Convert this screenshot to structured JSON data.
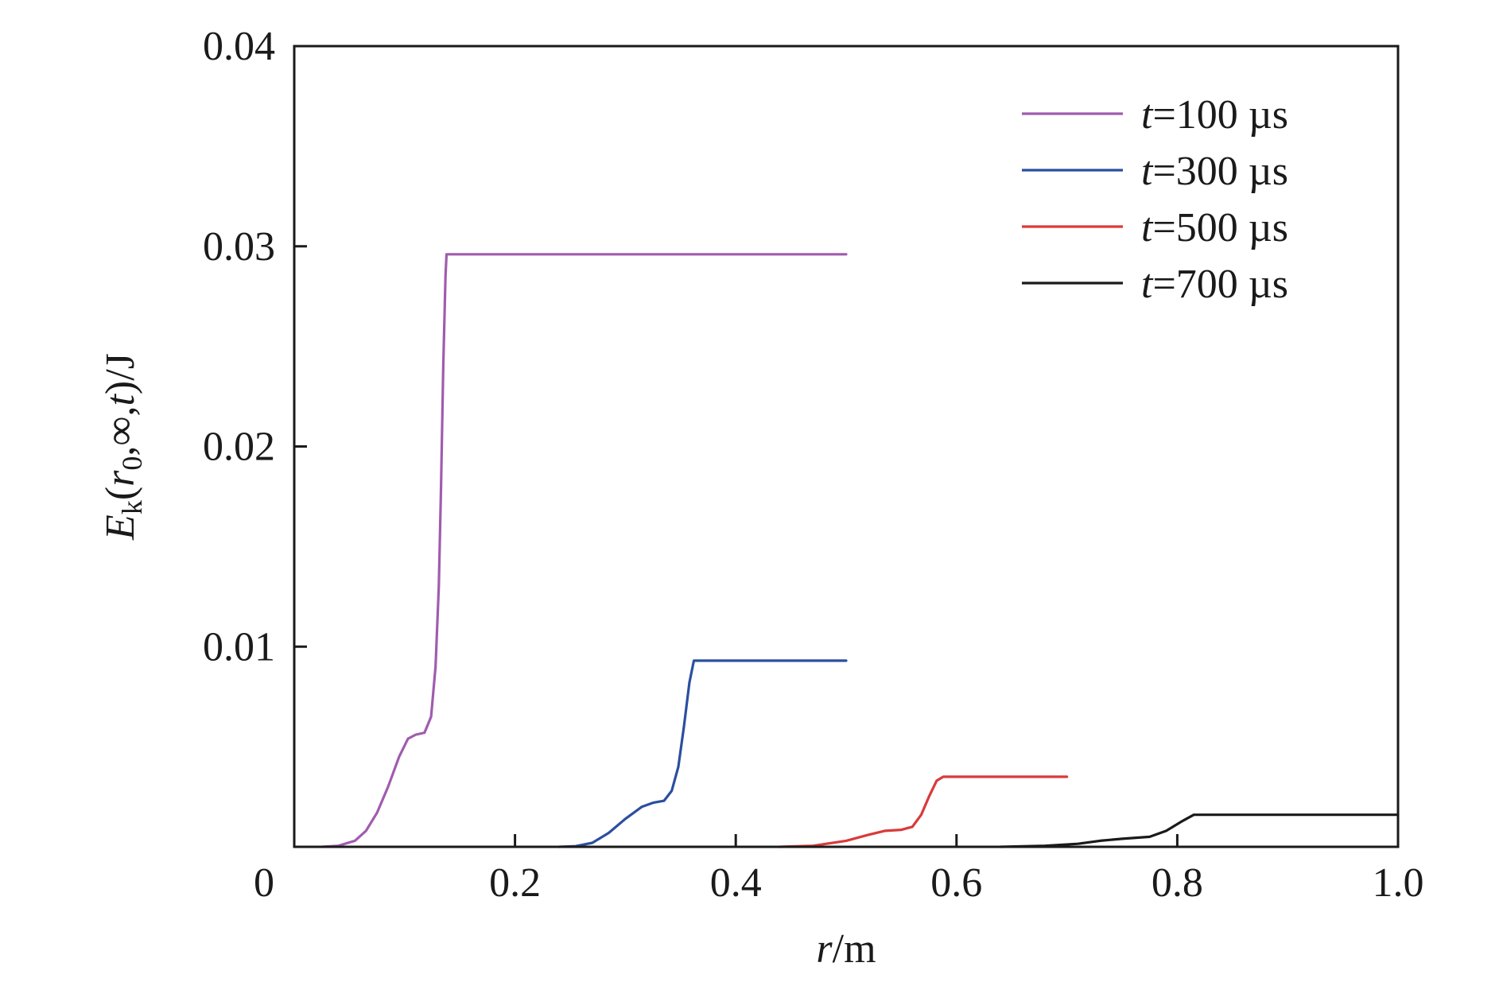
{
  "chart_data": {
    "type": "line",
    "xlabel": {
      "var": "r",
      "rest": "/m"
    },
    "ylabel": {
      "E": "E",
      "sub_k": "k",
      "open": "(",
      "r": "r",
      "sub_0": "0",
      "mid": ",∞,",
      "t": "t",
      "close": ")/J"
    },
    "xlim": [
      0,
      1.0
    ],
    "ylim": [
      0,
      0.04
    ],
    "x_ticks": [
      {
        "value": 0,
        "label": "0"
      },
      {
        "value": 0.2,
        "label": "0.2"
      },
      {
        "value": 0.4,
        "label": "0.4"
      },
      {
        "value": 0.6,
        "label": "0.6"
      },
      {
        "value": 0.8,
        "label": "0.8"
      },
      {
        "value": 1.0,
        "label": "1.0"
      }
    ],
    "y_ticks": [
      {
        "value": 0.01,
        "label": "0.01"
      },
      {
        "value": 0.02,
        "label": "0.02"
      },
      {
        "value": 0.03,
        "label": "0.03"
      },
      {
        "value": 0.04,
        "label": "0.04"
      }
    ],
    "grid": false,
    "legend_position": "top-right",
    "series": [
      {
        "name": "t=100 µs",
        "legend_var": "t",
        "legend_rest": "=100 µs",
        "color": "#a05cae",
        "points": [
          [
            0.025,
            0
          ],
          [
            0.04,
            5e-05
          ],
          [
            0.055,
            0.0003
          ],
          [
            0.065,
            0.0008
          ],
          [
            0.075,
            0.0017
          ],
          [
            0.085,
            0.003
          ],
          [
            0.095,
            0.0045
          ],
          [
            0.103,
            0.0054
          ],
          [
            0.11,
            0.0056
          ],
          [
            0.118,
            0.0057
          ],
          [
            0.124,
            0.0065
          ],
          [
            0.128,
            0.009
          ],
          [
            0.131,
            0.013
          ],
          [
            0.133,
            0.018
          ],
          [
            0.135,
            0.024
          ],
          [
            0.137,
            0.0285
          ],
          [
            0.138,
            0.0296
          ],
          [
            0.5,
            0.0296
          ]
        ]
      },
      {
        "name": "t=300 µs",
        "legend_var": "t",
        "legend_rest": "=300 µs",
        "color": "#2b4f9e",
        "points": [
          [
            0.24,
            0
          ],
          [
            0.255,
            3e-05
          ],
          [
            0.27,
            0.0002
          ],
          [
            0.285,
            0.0007
          ],
          [
            0.3,
            0.0014
          ],
          [
            0.315,
            0.002
          ],
          [
            0.325,
            0.0022
          ],
          [
            0.335,
            0.0023
          ],
          [
            0.342,
            0.0028
          ],
          [
            0.348,
            0.004
          ],
          [
            0.353,
            0.006
          ],
          [
            0.358,
            0.0082
          ],
          [
            0.362,
            0.0093
          ],
          [
            0.5,
            0.0093
          ]
        ]
      },
      {
        "name": "t=500 µs",
        "legend_var": "t",
        "legend_rest": "=500 µs",
        "color": "#d93a3a",
        "points": [
          [
            0.44,
            0
          ],
          [
            0.47,
            5e-05
          ],
          [
            0.5,
            0.0003
          ],
          [
            0.52,
            0.0006
          ],
          [
            0.535,
            0.0008
          ],
          [
            0.55,
            0.00085
          ],
          [
            0.56,
            0.001
          ],
          [
            0.568,
            0.0016
          ],
          [
            0.575,
            0.0025
          ],
          [
            0.582,
            0.0033
          ],
          [
            0.588,
            0.0035
          ],
          [
            0.7,
            0.0035
          ]
        ]
      },
      {
        "name": "t=700 µs",
        "legend_var": "t",
        "legend_rest": "=700 µs",
        "color": "#1a1a1a",
        "points": [
          [
            0.64,
            0
          ],
          [
            0.68,
            5e-05
          ],
          [
            0.71,
            0.00015
          ],
          [
            0.73,
            0.0003
          ],
          [
            0.75,
            0.0004
          ],
          [
            0.775,
            0.0005
          ],
          [
            0.79,
            0.0008
          ],
          [
            0.805,
            0.0013
          ],
          [
            0.815,
            0.0016
          ],
          [
            1.0,
            0.0016
          ]
        ]
      }
    ]
  }
}
